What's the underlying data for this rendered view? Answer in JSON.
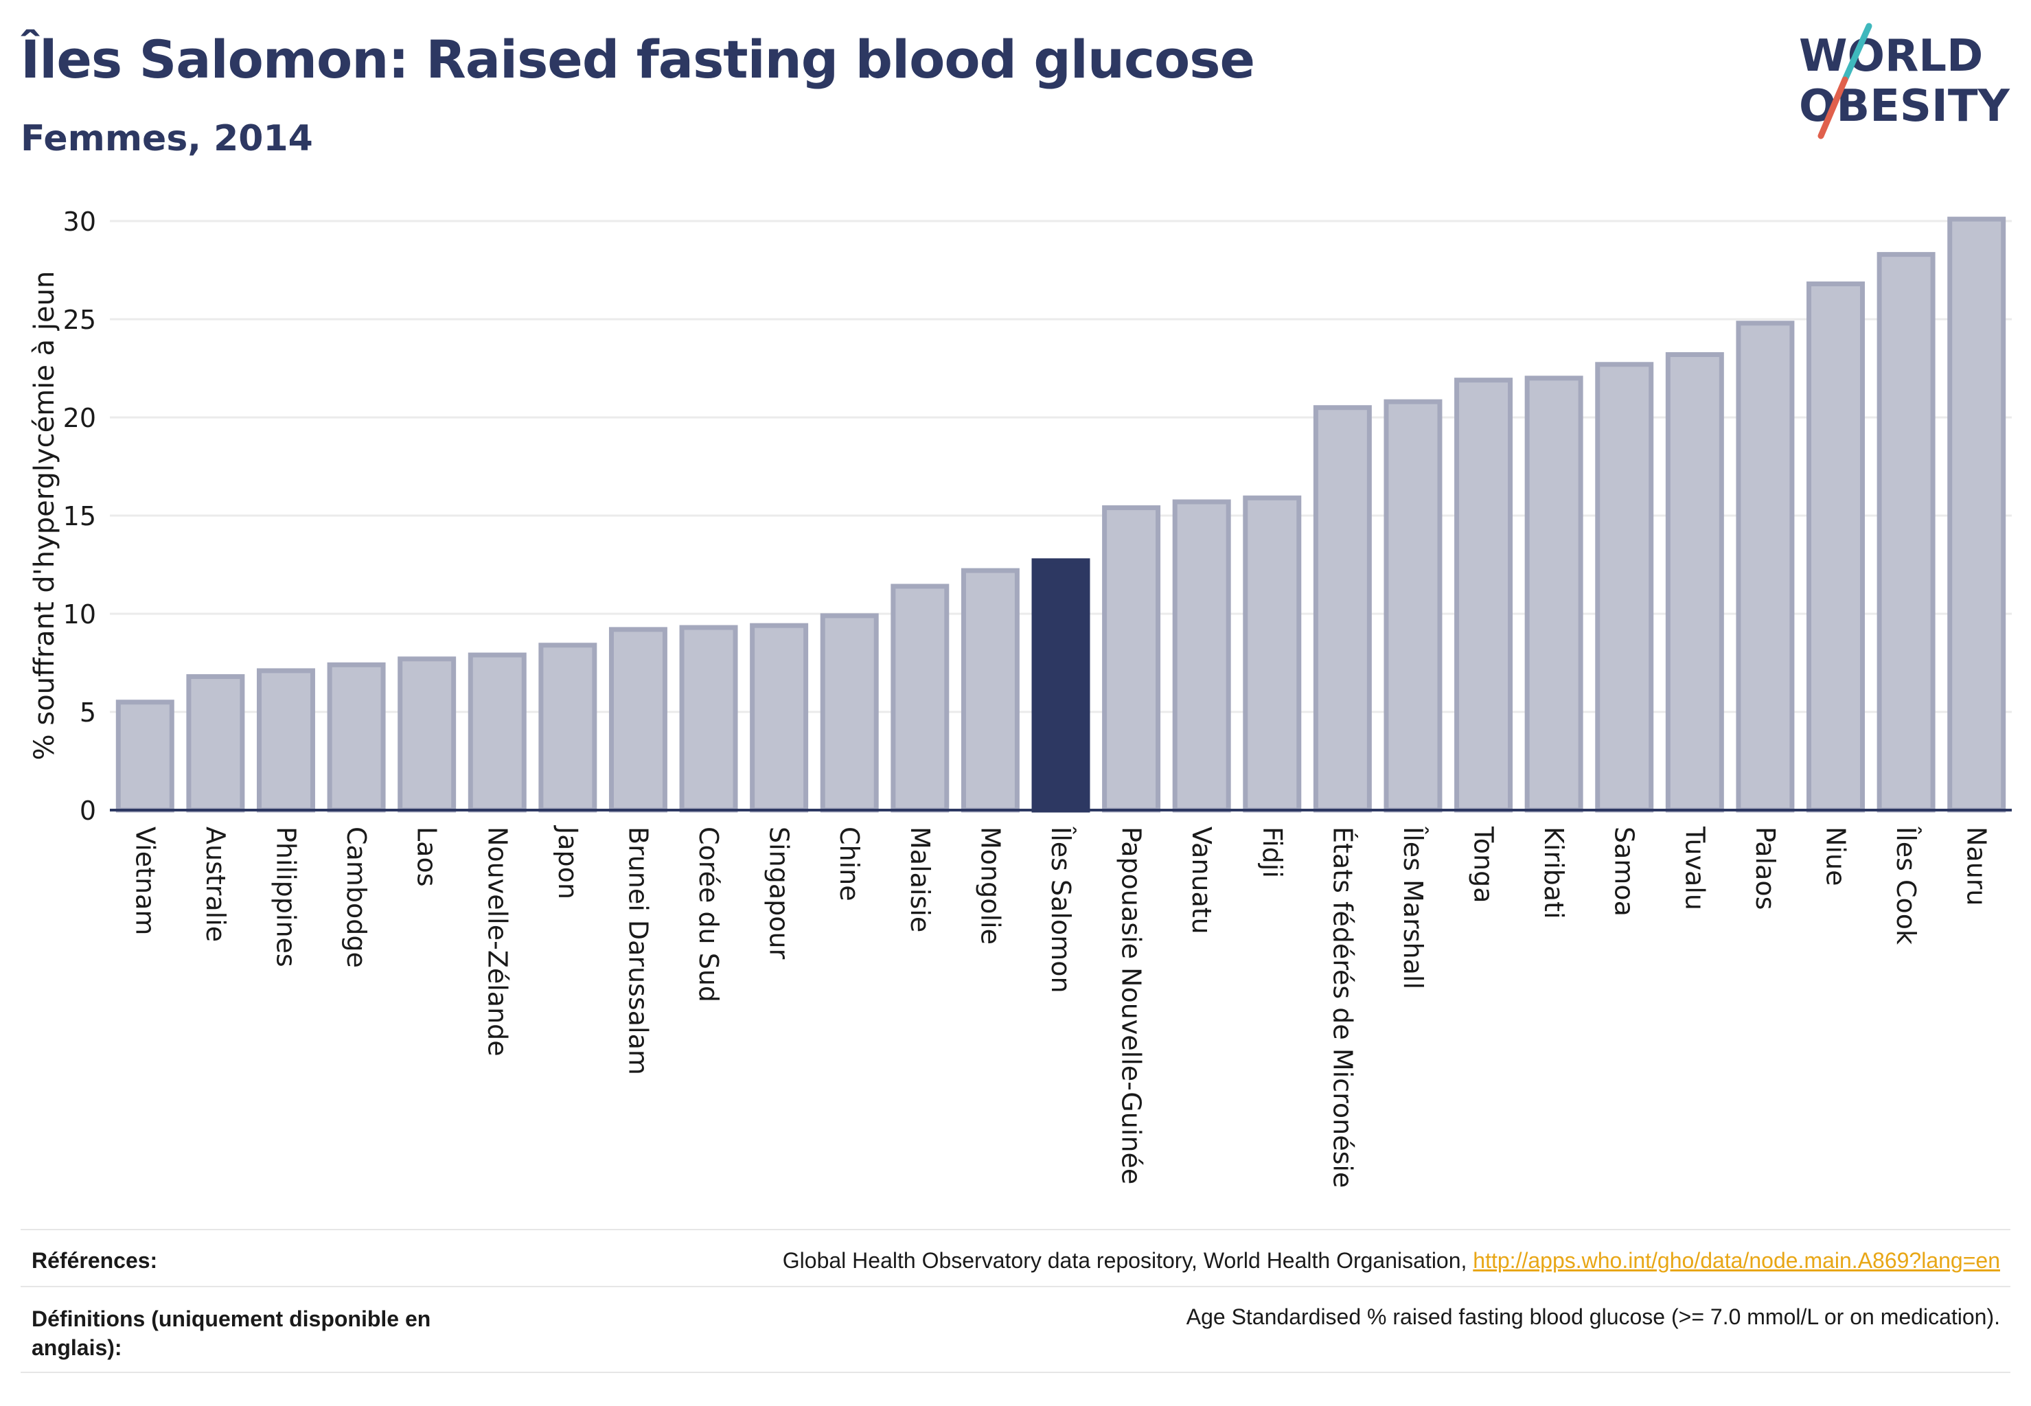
{
  "header": {
    "title": "Îles Salomon: Raised fasting blood glucose",
    "subtitle": "Femmes, 2014"
  },
  "logo": {
    "line1": "WORLD",
    "line2": "OBESITY",
    "colors": {
      "text": "#2d3862",
      "slash_teal": "#3fb8bd",
      "slash_red": "#e0604c"
    }
  },
  "chart_data": {
    "type": "bar",
    "ylabel": "% souffrant d'hyperglycémie à jeun",
    "ylim": [
      0,
      30
    ],
    "yticks": [
      0,
      5,
      10,
      15,
      20,
      25,
      30
    ],
    "grid": true,
    "highlight": "Îles Salomon",
    "colors": {
      "bar": "#bfc2d0",
      "bar_border": "#a4a8bd",
      "highlight": "#2d3862",
      "grid": "#ebebeb",
      "axis": "#2d3862"
    },
    "categories": [
      "Vietnam",
      "Australie",
      "Philippines",
      "Cambodge",
      "Laos",
      "Nouvelle-Zélande",
      "Japon",
      "Brunei Darussalam",
      "Corée du Sud",
      "Singapour",
      "Chine",
      "Malaisie",
      "Mongolie",
      "Îles Salomon",
      "Papouasie Nouvelle-Guinée",
      "Vanuatu",
      "Fidji",
      "États fédérés de Micronésie",
      "Îles Marshall",
      "Tonga",
      "Kiribati",
      "Samoa",
      "Tuvalu",
      "Palaos",
      "Niue",
      "Îles Cook",
      "Nauru"
    ],
    "values": [
      5.5,
      6.8,
      7.1,
      7.4,
      7.7,
      7.9,
      8.4,
      9.2,
      9.3,
      9.4,
      9.9,
      11.4,
      12.2,
      12.7,
      15.4,
      15.7,
      15.9,
      20.5,
      20.8,
      21.9,
      22.0,
      22.7,
      23.2,
      24.8,
      26.8,
      28.3,
      30.1
    ]
  },
  "footer": {
    "references_label": "Références:",
    "references_text": "Global Health Observatory data repository, World Health Organisation, ",
    "references_link": "http://apps.who.int/gho/data/node.main.A869?lang=en",
    "definitions_label": "Définitions (uniquement disponible en anglais):",
    "definitions_text": "Age Standardised % raised fasting blood glucose (>= 7.0 mmol/L or on medication)."
  }
}
